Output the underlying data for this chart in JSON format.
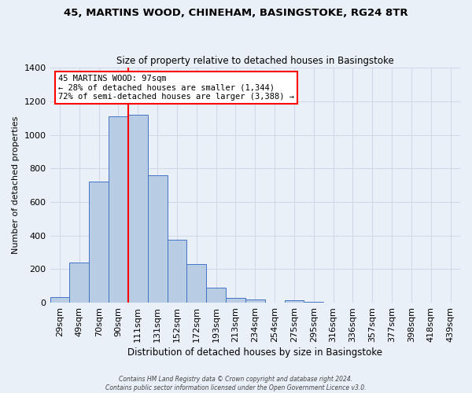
{
  "title": "45, MARTINS WOOD, CHINEHAM, BASINGSTOKE, RG24 8TR",
  "subtitle": "Size of property relative to detached houses in Basingstoke",
  "xlabel": "Distribution of detached houses by size in Basingstoke",
  "ylabel": "Number of detached properties",
  "categories": [
    "29sqm",
    "49sqm",
    "70sqm",
    "90sqm",
    "111sqm",
    "131sqm",
    "152sqm",
    "172sqm",
    "193sqm",
    "213sqm",
    "234sqm",
    "254sqm",
    "275sqm",
    "295sqm",
    "316sqm",
    "336sqm",
    "357sqm",
    "377sqm",
    "398sqm",
    "418sqm",
    "439sqm"
  ],
  "values": [
    35,
    240,
    720,
    1110,
    1120,
    760,
    375,
    230,
    90,
    30,
    20,
    0,
    15,
    5,
    0,
    0,
    0,
    0,
    0,
    0,
    0
  ],
  "bar_color": "#b8cce4",
  "bar_edge_color": "#4472c4",
  "grid_color": "#d0d8e8",
  "background_color": "#eaf0f8",
  "vline_color": "red",
  "vline_xindex": 3.5,
  "annotation_title": "45 MARTINS WOOD: 97sqm",
  "annotation_line1": "← 28% of detached houses are smaller (1,344)",
  "annotation_line2": "72% of semi-detached houses are larger (3,388) →",
  "annotation_box_color": "white",
  "annotation_box_edge": "red",
  "ylim": [
    0,
    1400
  ],
  "yticks": [
    0,
    200,
    400,
    600,
    800,
    1000,
    1200,
    1400
  ],
  "footer_line1": "Contains HM Land Registry data © Crown copyright and database right 2024.",
  "footer_line2": "Contains public sector information licensed under the Open Government Licence v3.0."
}
